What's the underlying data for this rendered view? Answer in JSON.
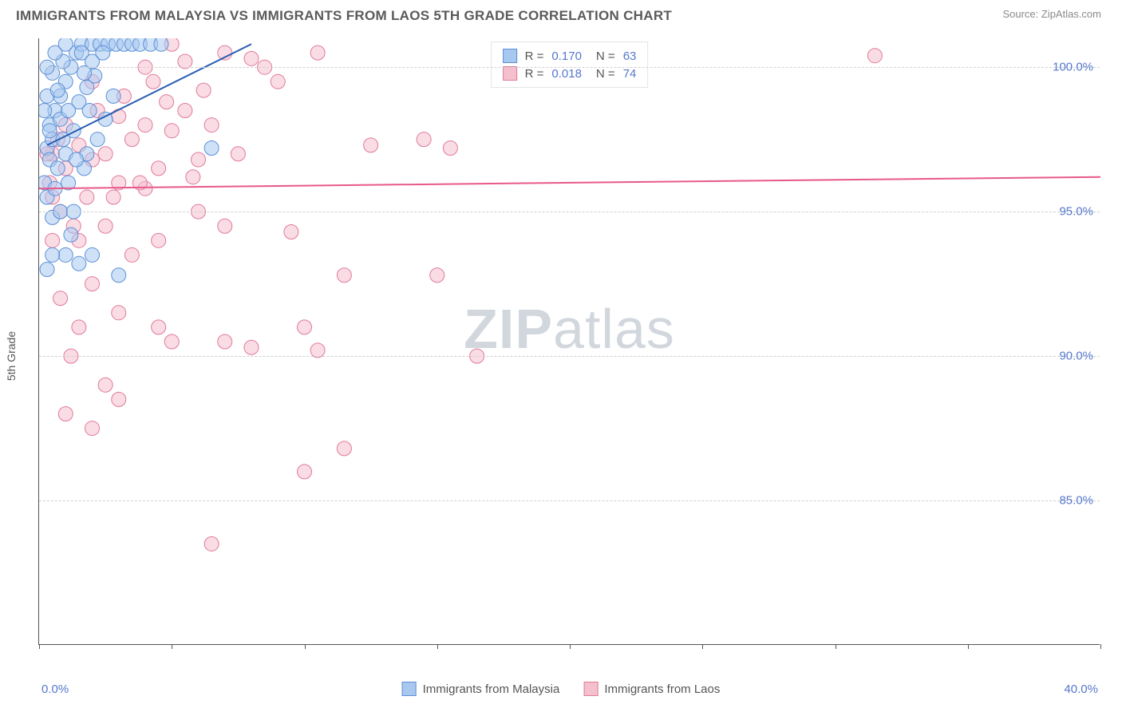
{
  "title": "IMMIGRANTS FROM MALAYSIA VS IMMIGRANTS FROM LAOS 5TH GRADE CORRELATION CHART",
  "source_prefix": "Source: ",
  "source_name": "ZipAtlas.com",
  "watermark_zip": "ZIP",
  "watermark_atlas": "atlas",
  "ylabel": "5th Grade",
  "chart": {
    "type": "scatter",
    "xlim": [
      0,
      40
    ],
    "ylim": [
      80,
      101
    ],
    "yticks": [
      85,
      90,
      95,
      100
    ],
    "ytick_labels": [
      "85.0%",
      "90.0%",
      "95.0%",
      "100.0%"
    ],
    "xticks": [
      0,
      5,
      10,
      15,
      20,
      25,
      30,
      35,
      40
    ],
    "x_axis_min_label": "0.0%",
    "x_axis_max_label": "40.0%",
    "background_color": "#ffffff",
    "grid_color": "#d0d0d0",
    "axis_color": "#555555",
    "series": [
      {
        "name": "Immigrants from Malaysia",
        "r_value": "0.170",
        "n_value": "63",
        "marker_fill": "#a8c8f0",
        "marker_stroke": "#5b8fd6",
        "marker_opacity": 0.55,
        "marker_radius": 9,
        "trend_color": "#2a5db0",
        "trend_width": 2,
        "trend": {
          "x1": 0.3,
          "y1": 97.3,
          "x2": 8.0,
          "y2": 100.8
        },
        "points": [
          [
            0.3,
            97.2
          ],
          [
            0.5,
            97.5
          ],
          [
            0.4,
            98.0
          ],
          [
            0.6,
            98.5
          ],
          [
            0.8,
            99.0
          ],
          [
            1.0,
            99.5
          ],
          [
            1.2,
            100.0
          ],
          [
            1.4,
            100.5
          ],
          [
            1.6,
            100.8
          ],
          [
            0.4,
            96.8
          ],
          [
            2.0,
            100.8
          ],
          [
            2.3,
            100.8
          ],
          [
            2.6,
            100.8
          ],
          [
            2.9,
            100.8
          ],
          [
            3.2,
            100.8
          ],
          [
            3.5,
            100.8
          ],
          [
            3.8,
            100.8
          ],
          [
            4.2,
            100.8
          ],
          [
            4.6,
            100.8
          ],
          [
            1.0,
            97.0
          ],
          [
            1.3,
            97.8
          ],
          [
            0.7,
            96.5
          ],
          [
            1.5,
            98.8
          ],
          [
            1.8,
            99.3
          ],
          [
            2.1,
            99.7
          ],
          [
            0.3,
            95.5
          ],
          [
            0.5,
            94.8
          ],
          [
            0.8,
            95.0
          ],
          [
            1.0,
            93.5
          ],
          [
            1.5,
            93.2
          ],
          [
            2.0,
            93.5
          ],
          [
            3.0,
            92.8
          ],
          [
            0.5,
            99.8
          ],
          [
            0.9,
            100.2
          ],
          [
            6.5,
            97.2
          ],
          [
            1.8,
            97.0
          ],
          [
            2.2,
            97.5
          ],
          [
            2.5,
            98.2
          ],
          [
            1.1,
            96.0
          ],
          [
            1.7,
            96.5
          ],
          [
            0.6,
            100.5
          ],
          [
            0.3,
            99.0
          ],
          [
            2.8,
            99.0
          ],
          [
            0.3,
            93.0
          ],
          [
            1.3,
            95.0
          ],
          [
            0.4,
            97.8
          ],
          [
            0.8,
            98.2
          ],
          [
            1.1,
            98.5
          ],
          [
            0.2,
            96.0
          ],
          [
            0.6,
            95.8
          ],
          [
            1.6,
            100.5
          ],
          [
            2.0,
            100.2
          ],
          [
            1.4,
            96.8
          ],
          [
            0.9,
            97.5
          ],
          [
            0.2,
            98.5
          ],
          [
            1.9,
            98.5
          ],
          [
            2.4,
            100.5
          ],
          [
            0.5,
            93.5
          ],
          [
            0.3,
            100.0
          ],
          [
            1.0,
            100.8
          ],
          [
            1.7,
            99.8
          ],
          [
            0.7,
            99.2
          ],
          [
            1.2,
            94.2
          ]
        ]
      },
      {
        "name": "Immigrants from Laos",
        "r_value": "0.018",
        "n_value": "74",
        "marker_fill": "#f5c0ce",
        "marker_stroke": "#e07a9a",
        "marker_opacity": 0.55,
        "marker_radius": 9,
        "trend_color": "#e8588a",
        "trend_width": 2,
        "trend": {
          "x1": 0.0,
          "y1": 95.8,
          "x2": 40.0,
          "y2": 96.2
        },
        "points": [
          [
            0.5,
            97.0
          ],
          [
            1.0,
            96.5
          ],
          [
            1.5,
            97.3
          ],
          [
            2.0,
            96.8
          ],
          [
            2.5,
            97.0
          ],
          [
            3.0,
            96.0
          ],
          [
            3.5,
            97.5
          ],
          [
            4.0,
            98.0
          ],
          [
            4.5,
            96.5
          ],
          [
            5.0,
            97.8
          ],
          [
            5.5,
            98.5
          ],
          [
            6.0,
            96.8
          ],
          [
            4.0,
            100.0
          ],
          [
            5.5,
            100.2
          ],
          [
            7.0,
            100.5
          ],
          [
            8.0,
            100.3
          ],
          [
            8.5,
            100.0
          ],
          [
            9.0,
            99.5
          ],
          [
            10.5,
            100.5
          ],
          [
            12.5,
            97.3
          ],
          [
            14.5,
            97.5
          ],
          [
            15.0,
            92.8
          ],
          [
            15.5,
            97.2
          ],
          [
            1.5,
            94.0
          ],
          [
            2.0,
            92.5
          ],
          [
            3.5,
            93.5
          ],
          [
            4.5,
            94.0
          ],
          [
            2.5,
            89.0
          ],
          [
            3.0,
            91.5
          ],
          [
            4.5,
            91.0
          ],
          [
            5.0,
            90.5
          ],
          [
            7.0,
            90.5
          ],
          [
            8.0,
            90.3
          ],
          [
            9.5,
            94.3
          ],
          [
            10.0,
            91.0
          ],
          [
            10.5,
            90.2
          ],
          [
            6.5,
            83.5
          ],
          [
            10.0,
            86.0
          ],
          [
            11.5,
            86.8
          ],
          [
            1.0,
            88.0
          ],
          [
            1.5,
            91.0
          ],
          [
            3.0,
            88.5
          ],
          [
            0.5,
            95.5
          ],
          [
            0.8,
            95.0
          ],
          [
            1.3,
            94.5
          ],
          [
            2.8,
            95.5
          ],
          [
            4.0,
            95.8
          ],
          [
            5.8,
            96.2
          ],
          [
            2.2,
            98.5
          ],
          [
            3.2,
            99.0
          ],
          [
            4.8,
            98.8
          ],
          [
            6.2,
            99.2
          ],
          [
            5.0,
            100.8
          ],
          [
            6.5,
            98.0
          ],
          [
            7.5,
            97.0
          ],
          [
            31.5,
            100.4
          ],
          [
            11.5,
            92.8
          ],
          [
            16.5,
            90.0
          ],
          [
            0.3,
            97.0
          ],
          [
            0.7,
            97.5
          ],
          [
            1.0,
            98.0
          ],
          [
            1.8,
            95.5
          ],
          [
            2.5,
            94.5
          ],
          [
            3.8,
            96.0
          ],
          [
            6.0,
            95.0
          ],
          [
            7.0,
            94.5
          ],
          [
            0.4,
            96.0
          ],
          [
            2.0,
            99.5
          ],
          [
            3.0,
            98.3
          ],
          [
            4.3,
            99.5
          ],
          [
            0.8,
            92.0
          ],
          [
            1.2,
            90.0
          ],
          [
            2.0,
            87.5
          ],
          [
            0.5,
            94.0
          ]
        ]
      }
    ]
  },
  "legend_top_r_label": "R =",
  "legend_top_n_label": "N ="
}
